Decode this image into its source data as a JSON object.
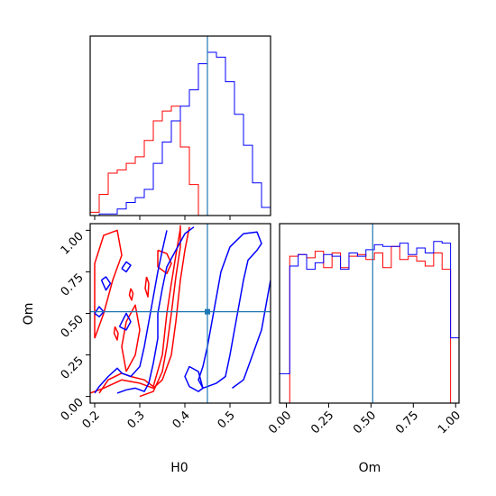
{
  "chart_data": {
    "type": "corner",
    "parameters": [
      "H0",
      "Om"
    ],
    "truth": {
      "H0": 0.45,
      "Om": 0.51
    },
    "truth_color": "#1f77b4",
    "series_colors": [
      "#ff0000",
      "#0000ff"
    ],
    "panels": {
      "H0_hist": {
        "xlim": [
          0.19,
          0.59
        ],
        "ymax": 1.0,
        "bins": [
          0.19,
          0.21,
          0.23,
          0.25,
          0.27,
          0.29,
          0.31,
          0.33,
          0.35,
          0.37,
          0.39,
          0.41,
          0.43,
          0.45,
          0.47,
          0.49,
          0.51,
          0.53,
          0.55,
          0.57,
          0.59
        ],
        "series": [
          {
            "values": [
              0.02,
              0.13,
              0.26,
              0.28,
              0.32,
              0.36,
              0.46,
              0.58,
              0.64,
              0.67,
              0.42,
              0.19,
              0.0,
              0.0,
              0.0,
              0.0,
              0.0,
              0.0,
              0.0,
              0.0
            ]
          },
          {
            "values": [
              0.0,
              0.01,
              0.01,
              0.04,
              0.08,
              0.11,
              0.16,
              0.32,
              0.45,
              0.58,
              0.67,
              0.77,
              0.93,
              1.0,
              0.97,
              0.82,
              0.62,
              0.43,
              0.2,
              0.05
            ]
          }
        ]
      },
      "Om_hist": {
        "xlim": [
          -0.04,
          1.02
        ],
        "ymax": 1.0,
        "bins": [
          -0.04,
          0.02,
          0.07,
          0.12,
          0.17,
          0.22,
          0.27,
          0.32,
          0.37,
          0.42,
          0.47,
          0.52,
          0.57,
          0.62,
          0.67,
          0.72,
          0.77,
          0.82,
          0.87,
          0.92,
          0.97,
          1.02
        ],
        "series": [
          {
            "values": [
              0.0,
              0.9,
              0.91,
              0.89,
              0.93,
              0.83,
              0.92,
              0.83,
              0.9,
              0.91,
              0.88,
              0.92,
              0.83,
              0.96,
              0.88,
              0.9,
              0.87,
              0.84,
              0.92,
              0.82,
              0.0
            ]
          },
          {
            "values": [
              0.18,
              0.84,
              0.91,
              0.82,
              0.86,
              0.91,
              0.9,
              0.82,
              0.92,
              0.9,
              0.94,
              0.97,
              0.96,
              0.96,
              0.98,
              0.91,
              0.95,
              0.92,
              0.99,
              0.98,
              0.4
            ]
          }
        ]
      },
      "joint": {
        "xlim": [
          0.19,
          0.59
        ],
        "ylim": [
          -0.04,
          1.04
        ],
        "contours": [
          {
            "series": 0,
            "points": [
              [
                0.19,
                0.02
              ],
              [
                0.22,
                0.05
              ],
              [
                0.26,
                0.1
              ],
              [
                0.3,
                0.08
              ],
              [
                0.33,
                0.05
              ],
              [
                0.35,
                0.1
              ],
              [
                0.37,
                0.25
              ],
              [
                0.38,
                0.45
              ],
              [
                0.39,
                0.7
              ],
              [
                0.4,
                0.88
              ],
              [
                0.41,
                1.02
              ]
            ]
          },
          {
            "series": 0,
            "points": [
              [
                0.3,
                0.0
              ],
              [
                0.33,
                0.03
              ],
              [
                0.35,
                0.15
              ],
              [
                0.36,
                0.3
              ],
              [
                0.37,
                0.5
              ],
              [
                0.38,
                0.72
              ],
              [
                0.39,
                0.9
              ],
              [
                0.39,
                1.03
              ]
            ]
          },
          {
            "series": 0,
            "points": [
              [
                0.21,
                0.02
              ],
              [
                0.23,
                0.1
              ],
              [
                0.26,
                0.14
              ],
              [
                0.28,
                0.12
              ],
              [
                0.31,
                0.1
              ],
              [
                0.33,
                0.06
              ],
              [
                0.35,
                0.25
              ],
              [
                0.36,
                0.5
              ],
              [
                0.37,
                0.68
              ],
              [
                0.38,
                0.85
              ],
              [
                0.39,
                1.01
              ]
            ]
          },
          {
            "series": 0,
            "points": [
              [
                0.2,
                0.35
              ],
              [
                0.22,
                0.5
              ],
              [
                0.24,
                0.7
              ],
              [
                0.26,
                0.85
              ],
              [
                0.25,
                1.0
              ],
              [
                0.22,
                0.97
              ],
              [
                0.2,
                0.8
              ],
              [
                0.2,
                0.6
              ],
              [
                0.2,
                0.35
              ]
            ]
          },
          {
            "series": 0,
            "points": [
              [
                0.27,
                0.15
              ],
              [
                0.29,
                0.25
              ],
              [
                0.3,
                0.4
              ],
              [
                0.29,
                0.55
              ],
              [
                0.27,
                0.45
              ],
              [
                0.26,
                0.3
              ],
              [
                0.27,
                0.15
              ]
            ]
          },
          {
            "series": 0,
            "points": [
              [
                0.34,
                0.88
              ],
              [
                0.36,
                0.86
              ],
              [
                0.37,
                0.8
              ],
              [
                0.36,
                0.74
              ],
              [
                0.34,
                0.78
              ],
              [
                0.34,
                0.88
              ]
            ]
          },
          {
            "series": 0,
            "points": [
              [
                0.315,
                0.72
              ],
              [
                0.32,
                0.68
              ],
              [
                0.318,
                0.6
              ],
              [
                0.312,
                0.65
              ],
              [
                0.315,
                0.72
              ]
            ]
          },
          {
            "series": 0,
            "points": [
              [
                0.245,
                0.42
              ],
              [
                0.252,
                0.38
              ],
              [
                0.25,
                0.34
              ],
              [
                0.243,
                0.38
              ],
              [
                0.245,
                0.42
              ]
            ]
          },
          {
            "series": 0,
            "points": [
              [
                0.28,
                0.65
              ],
              [
                0.285,
                0.62
              ],
              [
                0.282,
                0.58
              ],
              [
                0.277,
                0.61
              ],
              [
                0.28,
                0.65
              ]
            ]
          },
          {
            "series": 1,
            "points": [
              [
                0.2,
                0.02
              ],
              [
                0.21,
                0.06
              ],
              [
                0.23,
                0.12
              ],
              [
                0.25,
                0.17
              ],
              [
                0.26,
                0.14
              ],
              [
                0.28,
                0.12
              ],
              [
                0.3,
                0.18
              ],
              [
                0.31,
                0.3
              ],
              [
                0.32,
                0.45
              ],
              [
                0.33,
                0.6
              ],
              [
                0.34,
                0.75
              ],
              [
                0.35,
                0.88
              ],
              [
                0.36,
                1.0
              ]
            ]
          },
          {
            "series": 1,
            "points": [
              [
                0.25,
                0.02
              ],
              [
                0.27,
                0.04
              ],
              [
                0.29,
                0.05
              ],
              [
                0.31,
                0.03
              ],
              [
                0.32,
                0.08
              ],
              [
                0.33,
                0.2
              ],
              [
                0.34,
                0.35
              ],
              [
                0.34,
                0.5
              ],
              [
                0.35,
                0.65
              ],
              [
                0.36,
                0.78
              ],
              [
                0.38,
                0.88
              ],
              [
                0.4,
                0.98
              ],
              [
                0.42,
                1.02
              ]
            ]
          },
          {
            "series": 1,
            "points": [
              [
                0.44,
                0.05
              ],
              [
                0.47,
                0.08
              ],
              [
                0.49,
                0.12
              ],
              [
                0.5,
                0.25
              ],
              [
                0.51,
                0.4
              ],
              [
                0.52,
                0.55
              ],
              [
                0.53,
                0.7
              ],
              [
                0.54,
                0.82
              ],
              [
                0.56,
                0.88
              ],
              [
                0.57,
                0.92
              ],
              [
                0.56,
                0.99
              ],
              [
                0.53,
                0.98
              ],
              [
                0.5,
                0.9
              ],
              [
                0.48,
                0.75
              ],
              [
                0.47,
                0.6
              ],
              [
                0.46,
                0.45
              ],
              [
                0.45,
                0.3
              ],
              [
                0.44,
                0.18
              ],
              [
                0.43,
                0.1
              ],
              [
                0.44,
                0.05
              ]
            ]
          },
          {
            "series": 1,
            "points": [
              [
                0.44,
                0.05
              ],
              [
                0.43,
                0.03
              ],
              [
                0.41,
                0.06
              ],
              [
                0.4,
                0.12
              ],
              [
                0.41,
                0.18
              ],
              [
                0.43,
                0.15
              ],
              [
                0.44,
                0.05
              ]
            ]
          },
          {
            "series": 1,
            "points": [
              [
                0.505,
                0.05
              ],
              [
                0.53,
                0.1
              ],
              [
                0.55,
                0.25
              ],
              [
                0.57,
                0.4
              ],
              [
                0.58,
                0.55
              ],
              [
                0.59,
                0.7
              ]
            ]
          },
          {
            "series": 1,
            "points": [
              [
                0.255,
                0.42
              ],
              [
                0.27,
                0.4
              ],
              [
                0.28,
                0.45
              ],
              [
                0.27,
                0.5
              ],
              [
                0.255,
                0.42
              ]
            ]
          },
          {
            "series": 1,
            "points": [
              [
                0.215,
                0.7
              ],
              [
                0.225,
                0.64
              ],
              [
                0.235,
                0.68
              ],
              [
                0.225,
                0.72
              ],
              [
                0.215,
                0.7
              ]
            ]
          },
          {
            "series": 1,
            "points": [
              [
                0.2,
                0.5
              ],
              [
                0.21,
                0.54
              ],
              [
                0.22,
                0.51
              ],
              [
                0.21,
                0.48
              ],
              [
                0.2,
                0.5
              ]
            ]
          },
          {
            "series": 1,
            "points": [
              [
                0.26,
                0.77
              ],
              [
                0.27,
                0.81
              ],
              [
                0.28,
                0.79
              ],
              [
                0.27,
                0.75
              ],
              [
                0.26,
                0.77
              ]
            ]
          }
        ]
      }
    },
    "ticks": {
      "H0": [
        "0.2",
        "0.3",
        "0.4",
        "0.5"
      ],
      "H0_values": [
        0.2,
        0.3,
        0.4,
        0.5
      ],
      "Om": [
        "0.00",
        "0.25",
        "0.50",
        "0.75",
        "1.00"
      ],
      "Om_values": [
        0.0,
        0.25,
        0.5,
        0.75,
        1.0
      ]
    },
    "xlabel": "H0",
    "ylabel": "Om",
    "xlabel2": "Om"
  }
}
